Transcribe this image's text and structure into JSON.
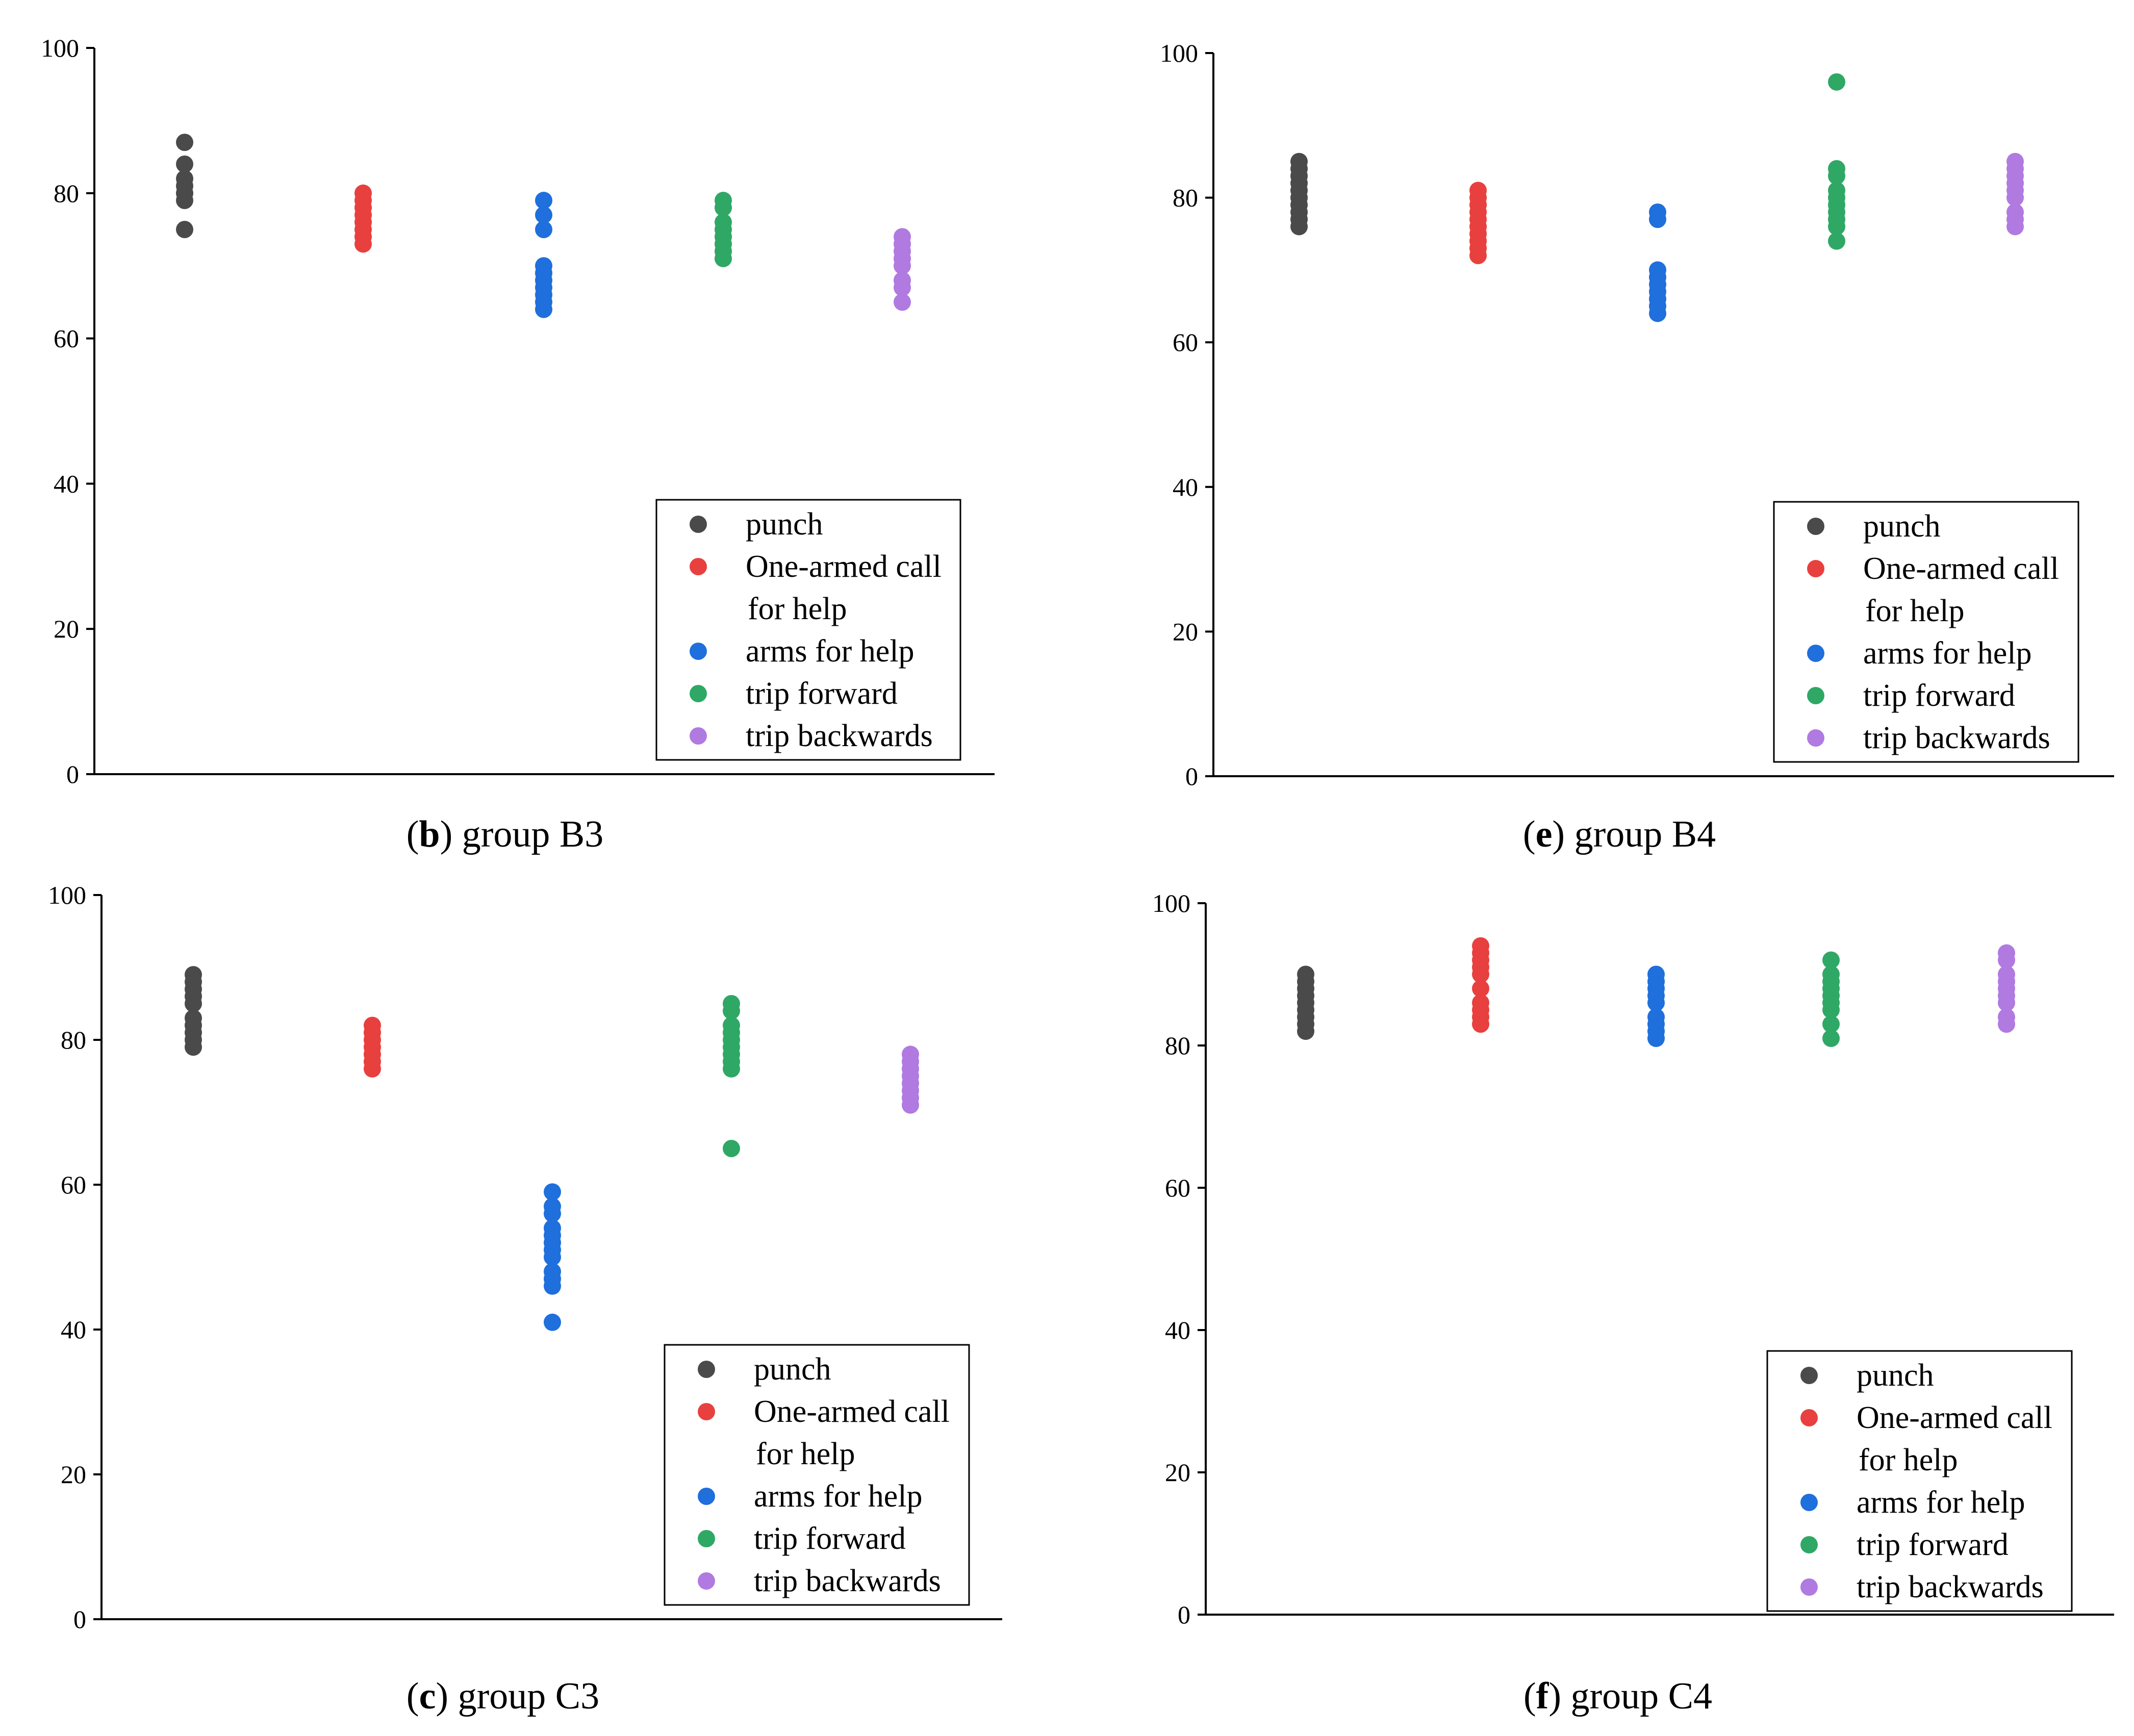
{
  "colors": {
    "punch": "#4a4a4a",
    "one_armed_call": "#e8403f",
    "arms_for_help": "#1f6fdc",
    "trip_forward": "#2fa865",
    "trip_backwards": "#b07ae0"
  },
  "chart_data": [
    {
      "type": "scatter",
      "caption_letter": "b",
      "caption_text": " group B3",
      "xlabel": "",
      "ylabel": "",
      "ylim": [
        0,
        100
      ],
      "yticks": [
        "0",
        "20",
        "40",
        "60",
        "80",
        "100"
      ],
      "grid": false,
      "legend_position": "bottom-right",
      "series": [
        {
          "name": "punch",
          "key": "punch",
          "values": [
            75,
            79,
            80,
            81,
            82,
            84,
            87
          ]
        },
        {
          "name": "One-armed call for help",
          "key": "one_armed_call",
          "values": [
            73,
            74,
            75,
            76,
            77,
            78,
            79,
            80
          ]
        },
        {
          "name": "arms for help",
          "key": "arms_for_help",
          "values": [
            64,
            65,
            66,
            67,
            68,
            69,
            70,
            75,
            77,
            79
          ]
        },
        {
          "name": "trip forward",
          "key": "trip_forward",
          "values": [
            71,
            72,
            73,
            74,
            75,
            76,
            78,
            79
          ]
        },
        {
          "name": "trip backwards",
          "key": "trip_backwards",
          "values": [
            65,
            67,
            68,
            70,
            71,
            72,
            73,
            74
          ]
        }
      ]
    },
    {
      "type": "scatter",
      "caption_letter": "e",
      "caption_text": " group B4",
      "xlabel": "",
      "ylabel": "",
      "ylim": [
        0,
        100
      ],
      "yticks": [
        "0",
        "20",
        "40",
        "60",
        "80",
        "100"
      ],
      "grid": false,
      "legend_position": "bottom-right",
      "series": [
        {
          "name": "punch",
          "key": "punch",
          "values": [
            76,
            77,
            78,
            79,
            80,
            81,
            82,
            83,
            84,
            85
          ]
        },
        {
          "name": "One-armed call for help",
          "key": "one_armed_call",
          "values": [
            72,
            73,
            74,
            75,
            76,
            77,
            78,
            79,
            80,
            81
          ]
        },
        {
          "name": "arms for help",
          "key": "arms_for_help",
          "values": [
            64,
            65,
            66,
            67,
            68,
            69,
            70,
            77,
            78
          ]
        },
        {
          "name": "trip forward",
          "key": "trip_forward",
          "values": [
            74,
            76,
            77,
            78,
            79,
            80,
            81,
            83,
            84,
            96
          ]
        },
        {
          "name": "trip backwards",
          "key": "trip_backwards",
          "values": [
            76,
            77,
            78,
            80,
            81,
            82,
            83,
            84,
            85
          ]
        }
      ]
    },
    {
      "type": "scatter",
      "caption_letter": "c",
      "caption_text": " group C3",
      "xlabel": "",
      "ylabel": "",
      "ylim": [
        0,
        100
      ],
      "yticks": [
        "0",
        "20",
        "40",
        "60",
        "80",
        "100"
      ],
      "grid": false,
      "legend_position": "bottom-right",
      "series": [
        {
          "name": "punch",
          "key": "punch",
          "values": [
            79,
            80,
            81,
            82,
            83,
            85,
            86,
            87,
            88,
            89
          ]
        },
        {
          "name": "One-armed call for help",
          "key": "one_armed_call",
          "values": [
            76,
            77,
            78,
            79,
            80,
            81,
            82
          ]
        },
        {
          "name": "arms for help",
          "key": "arms_for_help",
          "values": [
            41,
            46,
            47,
            48,
            50,
            51,
            52,
            53,
            54,
            56,
            57,
            59
          ]
        },
        {
          "name": "trip forward",
          "key": "trip_forward",
          "values": [
            65,
            76,
            77,
            78,
            79,
            80,
            81,
            82,
            84,
            85
          ]
        },
        {
          "name": "trip backwards",
          "key": "trip_backwards",
          "values": [
            71,
            72,
            73,
            74,
            75,
            76,
            77,
            78
          ]
        }
      ]
    },
    {
      "type": "scatter",
      "caption_letter": "f",
      "caption_text": " group C4",
      "xlabel": "",
      "ylabel": "",
      "ylim": [
        0,
        100
      ],
      "yticks": [
        "0",
        "20",
        "40",
        "60",
        "80",
        "100"
      ],
      "grid": false,
      "legend_position": "bottom-right",
      "series": [
        {
          "name": "punch",
          "key": "punch",
          "values": [
            82,
            83,
            84,
            85,
            86,
            87,
            88,
            89,
            90
          ]
        },
        {
          "name": "One-armed call for help",
          "key": "one_armed_call",
          "values": [
            83,
            84,
            85,
            86,
            88,
            90,
            91,
            92,
            93,
            94
          ]
        },
        {
          "name": "arms for help",
          "key": "arms_for_help",
          "values": [
            81,
            82,
            83,
            84,
            86,
            87,
            88,
            89,
            90
          ]
        },
        {
          "name": "trip forward",
          "key": "trip_forward",
          "values": [
            81,
            83,
            85,
            86,
            87,
            88,
            89,
            90,
            92
          ]
        },
        {
          "name": "trip backwards",
          "key": "trip_backwards",
          "values": [
            83,
            84,
            86,
            87,
            88,
            89,
            90,
            92,
            93
          ]
        }
      ]
    }
  ],
  "legend": {
    "items": [
      {
        "key": "punch",
        "lines": [
          "punch"
        ]
      },
      {
        "key": "one_armed_call",
        "lines": [
          "One-armed call",
          "for help"
        ]
      },
      {
        "key": "arms_for_help",
        "lines": [
          "arms for help"
        ]
      },
      {
        "key": "trip_forward",
        "lines": [
          "trip forward"
        ]
      },
      {
        "key": "trip_backwards",
        "lines": [
          "trip backwards"
        ]
      }
    ]
  }
}
